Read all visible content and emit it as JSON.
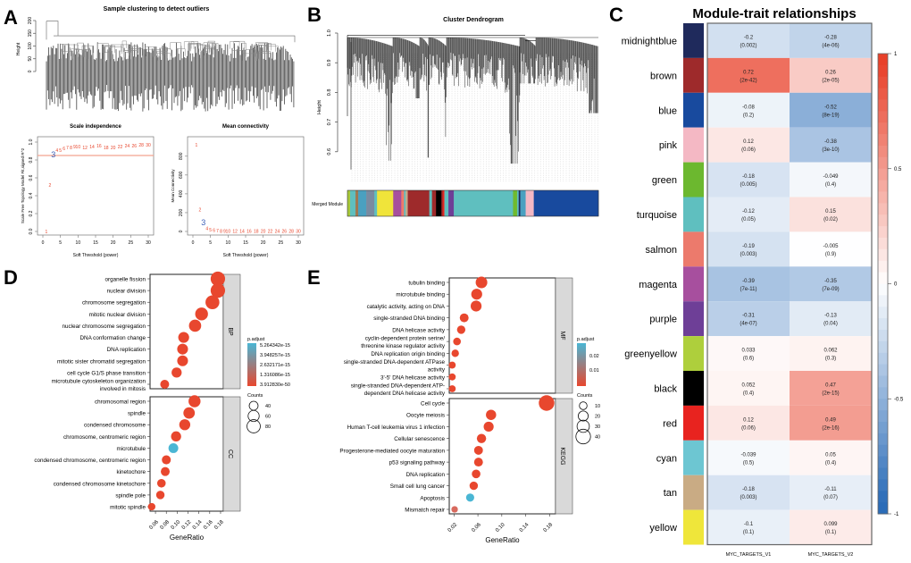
{
  "panel_labels": [
    "A",
    "B",
    "C",
    "D",
    "E"
  ],
  "chart_data": [
    {
      "id": "sample_clustering",
      "type": "dendrogram",
      "title": "Sample clustering to detect outliers",
      "ylabel": "Height",
      "yticks": [
        0,
        50,
        100,
        150,
        200
      ],
      "ylim": [
        0,
        200
      ]
    },
    {
      "id": "scale_independence",
      "type": "scatter",
      "title": "Scale independence",
      "xlabel": "Soft Threshold (power)",
      "ylabel": "Scale Free Topology Model Fit,signed R^2",
      "xlim": [
        0,
        30
      ],
      "ylim": [
        0,
        1
      ],
      "xticks": [
        0,
        5,
        10,
        15,
        20,
        25,
        30
      ],
      "yticks": [
        0.0,
        0.2,
        0.4,
        0.6,
        0.8,
        1.0
      ],
      "cutoff": 0.85,
      "selected_power": 3,
      "x": [
        1,
        2,
        3,
        4,
        5,
        6,
        7,
        8,
        9,
        10,
        12,
        14,
        16,
        18,
        20,
        22,
        24,
        26,
        28,
        30
      ],
      "y": [
        0.0,
        0.52,
        0.85,
        0.91,
        0.91,
        0.93,
        0.94,
        0.94,
        0.95,
        0.95,
        0.94,
        0.95,
        0.96,
        0.94,
        0.94,
        0.95,
        0.96,
        0.96,
        0.97,
        0.97
      ]
    },
    {
      "id": "mean_connectivity",
      "type": "scatter",
      "title": "Mean connectivity",
      "xlabel": "Soft Threshold (power)",
      "ylabel": "Mean Connectivity",
      "xlim": [
        0,
        30
      ],
      "ylim": [
        0,
        950
      ],
      "xticks": [
        0,
        5,
        10,
        15,
        20,
        25,
        30
      ],
      "yticks": [
        0,
        200,
        400,
        600,
        800
      ],
      "selected_power": 3,
      "x": [
        1,
        2,
        3,
        4,
        5,
        6,
        7,
        8,
        9,
        10,
        12,
        14,
        16,
        18,
        20,
        22,
        24,
        26,
        28,
        30
      ],
      "y": [
        920,
        235,
        85,
        35,
        20,
        12,
        8,
        6,
        5,
        5,
        4,
        4,
        4,
        4,
        4,
        4,
        4,
        4,
        4,
        4
      ]
    },
    {
      "id": "cluster_dendrogram",
      "type": "dendrogram",
      "title": "Cluster Dendrogram",
      "ylabel": "Height",
      "yticks": [
        0.6,
        0.7,
        0.8,
        0.9,
        1.0
      ],
      "ylim": [
        0.5,
        1.0
      ],
      "module_label": "Merged Module",
      "modules": [
        {
          "color": "#a8c93a",
          "size": 1
        },
        {
          "color": "#5fbfbf",
          "size": 2
        },
        {
          "color": "#a07850",
          "size": 1
        },
        {
          "color": "#4aa0c0",
          "size": 3
        },
        {
          "color": "#7a8aa0",
          "size": 3
        },
        {
          "color": "#5fbfbf",
          "size": 1
        },
        {
          "color": "#f0e43a",
          "size": 6
        },
        {
          "color": "#a74f9e",
          "size": 3
        },
        {
          "color": "#f07a6a",
          "size": 1
        },
        {
          "color": "#5fbfbf",
          "size": 0.6
        },
        {
          "color": "#c6a888",
          "size": 0.8
        },
        {
          "color": "#9e2a2b",
          "size": 8
        },
        {
          "color": "#5fbfbf",
          "size": 1
        },
        {
          "color": "#9e2a2b",
          "size": 1.5
        },
        {
          "color": "#000000",
          "size": 2
        },
        {
          "color": "#9e2a2b",
          "size": 0.5
        },
        {
          "color": "#e8251f",
          "size": 0.6
        },
        {
          "color": "#5fbfbf",
          "size": 1.5
        },
        {
          "color": "#6e3f97",
          "size": 2
        },
        {
          "color": "#5fbfbf",
          "size": 22
        },
        {
          "color": "#70bb2e",
          "size": 1.5
        },
        {
          "color": "#5fbfbf",
          "size": 0.6
        },
        {
          "color": "#1f2a5c",
          "size": 0.6
        },
        {
          "color": "#4aa0c0",
          "size": 2
        },
        {
          "color": "#f4b8c4",
          "size": 3
        },
        {
          "color": "#184a9e",
          "size": 24
        }
      ]
    },
    {
      "id": "module_trait",
      "type": "heatmap",
      "title": "Module-trait relationships",
      "columns": [
        "MYC_TARGETS_V1",
        "MYC_TARGETS_V2"
      ],
      "colorbar_ticks": [
        "1",
        "0.5",
        "0",
        "-0.5",
        "-1"
      ],
      "colorbar_range": [
        -1,
        1
      ],
      "rows": [
        {
          "module": "midnightblue",
          "color": "#1f2a5c",
          "values": [
            -0.2,
            -0.28
          ],
          "labels": [
            "-0.2",
            "-0.28"
          ],
          "p": [
            "(0.002)",
            "(4e-06)"
          ]
        },
        {
          "module": "brown",
          "color": "#9e2a2b",
          "values": [
            0.72,
            0.26
          ],
          "labels": [
            "0.72",
            "0.26"
          ],
          "p": [
            "(2e-42)",
            "(2e-05)"
          ]
        },
        {
          "module": "blue",
          "color": "#184a9e",
          "values": [
            -0.08,
            -0.52
          ],
          "labels": [
            "-0.08",
            "-0.52"
          ],
          "p": [
            "(0.2)",
            "(8e-19)"
          ]
        },
        {
          "module": "pink",
          "color": "#f4b8c4",
          "values": [
            0.12,
            -0.38
          ],
          "labels": [
            "0.12",
            "-0.38"
          ],
          "p": [
            "(0.06)",
            "(3e-10)"
          ]
        },
        {
          "module": "green",
          "color": "#6cb82f",
          "values": [
            -0.18,
            -0.049
          ],
          "labels": [
            "-0.18",
            "-0.049"
          ],
          "p": [
            "(0.005)",
            "(0.4)"
          ]
        },
        {
          "module": "turquoise",
          "color": "#5fbfbf",
          "values": [
            -0.12,
            0.15
          ],
          "labels": [
            "-0.12",
            "0.15"
          ],
          "p": [
            "(0.05)",
            "(0.02)"
          ]
        },
        {
          "module": "salmon",
          "color": "#ec7a6c",
          "values": [
            -0.19,
            -0.005
          ],
          "labels": [
            "-0.19",
            "-0.005"
          ],
          "p": [
            "(0.003)",
            "(0.9)"
          ]
        },
        {
          "module": "magenta",
          "color": "#a74f9e",
          "values": [
            -0.39,
            -0.35
          ],
          "labels": [
            "-0.39",
            "-0.35"
          ],
          "p": [
            "(7e-11)",
            "(7e-09)"
          ]
        },
        {
          "module": "purple",
          "color": "#6e3f97",
          "values": [
            -0.31,
            -0.13
          ],
          "labels": [
            "-0.31",
            "-0.13"
          ],
          "p": [
            "(4e-07)",
            "(0.04)"
          ]
        },
        {
          "module": "greenyellow",
          "color": "#aecf3c",
          "values": [
            0.033,
            0.062
          ],
          "labels": [
            "0.033",
            "0.062"
          ],
          "p": [
            "(0.6)",
            "(0.3)"
          ]
        },
        {
          "module": "black",
          "color": "#000000",
          "values": [
            0.052,
            0.47
          ],
          "labels": [
            "0.052",
            "0.47"
          ],
          "p": [
            "(0.4)",
            "(2e-15)"
          ]
        },
        {
          "module": "red",
          "color": "#e8231f",
          "values": [
            0.12,
            0.49
          ],
          "labels": [
            "0.12",
            "0.49"
          ],
          "p": [
            "(0.06)",
            "(2e-16)"
          ]
        },
        {
          "module": "cyan",
          "color": "#6dc6d2",
          "values": [
            -0.039,
            0.05
          ],
          "labels": [
            "-0.039",
            "0.05"
          ],
          "p": [
            "(0.5)",
            "(0.4)"
          ]
        },
        {
          "module": "tan",
          "color": "#c9ab84",
          "values": [
            -0.18,
            -0.11
          ],
          "labels": [
            "-0.18",
            "-0.11"
          ],
          "p": [
            "(0.003)",
            "(0.07)"
          ]
        },
        {
          "module": "yellow",
          "color": "#efe63a",
          "values": [
            -0.1,
            0.099
          ],
          "labels": [
            "-0.1",
            "0.099"
          ],
          "p": [
            "(0.1)",
            "(0.1)"
          ]
        }
      ]
    },
    {
      "id": "go_bp_cc",
      "type": "scatter",
      "xlabel": "GeneRatio",
      "xticks": [
        "0.06",
        "0.08",
        "0.10",
        "0.12",
        "0.14",
        "0.16",
        "0.18"
      ],
      "xlim": [
        0.05,
        0.185
      ],
      "legend": {
        "color_title": "p.adjust",
        "color_ticks": [
          "5.264342e-15",
          "3.948257e-15",
          "2.632171e-15",
          "1.316086e-15",
          "3.912830e-50"
        ],
        "size_title": "Counts",
        "size_ticks": [
          40,
          60,
          80
        ]
      },
      "facets": [
        {
          "name": "BP",
          "terms": [
            {
              "term": [
                "organelle fission"
              ],
              "ratio": 0.175,
              "count": 90,
              "padj": 0
            },
            {
              "term": [
                "nuclear division"
              ],
              "ratio": 0.175,
              "count": 90,
              "padj": 0
            },
            {
              "term": [
                "chromosome segregation"
              ],
              "ratio": 0.165,
              "count": 85,
              "padj": 0
            },
            {
              "term": [
                "mitotic nuclear division"
              ],
              "ratio": 0.145,
              "count": 75,
              "padj": 0
            },
            {
              "term": [
                "nuclear chromosome segregation"
              ],
              "ratio": 0.133,
              "count": 70,
              "padj": 0
            },
            {
              "term": [
                "DNA conformation change"
              ],
              "ratio": 0.112,
              "count": 58,
              "padj": 0
            },
            {
              "term": [
                "DNA replication"
              ],
              "ratio": 0.11,
              "count": 57,
              "padj": 0
            },
            {
              "term": [
                "mitotic sister chromatid segregation"
              ],
              "ratio": 0.11,
              "count": 57,
              "padj": 0
            },
            {
              "term": [
                "cell cycle G1/S phase transition"
              ],
              "ratio": 0.099,
              "count": 51,
              "padj": 0
            },
            {
              "term": [
                "microtubule cytoskeleton organization",
                "involved in mitosis"
              ],
              "ratio": 0.077,
              "count": 40,
              "padj": 0
            }
          ]
        },
        {
          "name": "CC",
          "terms": [
            {
              "term": [
                "chromosomal region"
              ],
              "ratio": 0.132,
              "count": 68,
              "padj": 0
            },
            {
              "term": [
                "spindle"
              ],
              "ratio": 0.122,
              "count": 63,
              "padj": 0
            },
            {
              "term": [
                "condensed chromosome"
              ],
              "ratio": 0.114,
              "count": 59,
              "padj": 0
            },
            {
              "term": [
                "chromosome, centromeric region"
              ],
              "ratio": 0.098,
              "count": 51,
              "padj": 0
            },
            {
              "term": [
                "microtubule"
              ],
              "ratio": 0.093,
              "count": 48,
              "padj": 1
            },
            {
              "term": [
                "condensed chromosome, centromeric region"
              ],
              "ratio": 0.08,
              "count": 41,
              "padj": 0
            },
            {
              "term": [
                "kinetochore"
              ],
              "ratio": 0.078,
              "count": 40,
              "padj": 0
            },
            {
              "term": [
                "condensed chromosome kinetochore"
              ],
              "ratio": 0.071,
              "count": 37,
              "padj": 0
            },
            {
              "term": [
                "spindle pole"
              ],
              "ratio": 0.069,
              "count": 36,
              "padj": 0
            },
            {
              "term": [
                "mitotic spindle"
              ],
              "ratio": 0.053,
              "count": 27,
              "padj": 0
            }
          ]
        }
      ]
    },
    {
      "id": "go_mf_kegg",
      "type": "scatter",
      "xlabel": "GeneRatio",
      "xticks": [
        "0.02",
        "0.06",
        "0.10",
        "0.14",
        "0.18"
      ],
      "xlim": [
        0.012,
        0.19
      ],
      "legend": {
        "color_title": "p.adjust",
        "color_ticks": [
          "0.02",
          "0.01"
        ],
        "size_title": "Counts",
        "size_ticks": [
          10,
          20,
          30,
          40
        ]
      },
      "facets": [
        {
          "name": "MF",
          "terms": [
            {
              "term": [
                "tubulin binding"
              ],
              "ratio": 0.066,
              "count": 27,
              "padj": 0
            },
            {
              "term": [
                "microtubule binding"
              ],
              "ratio": 0.058,
              "count": 24,
              "padj": 0
            },
            {
              "term": [
                "catalytic activity, acting on DNA"
              ],
              "ratio": 0.057,
              "count": 24,
              "padj": 0
            },
            {
              "term": [
                "single-stranded DNA binding"
              ],
              "ratio": 0.037,
              "count": 15,
              "padj": 0
            },
            {
              "term": [
                "DNA helicase activity"
              ],
              "ratio": 0.032,
              "count": 13,
              "padj": 0
            },
            {
              "term": [
                "cyclin-dependent protein serine/",
                "threonine kinase regulator activity"
              ],
              "ratio": 0.025,
              "count": 10,
              "padj": 0
            },
            {
              "term": [
                "DNA replication origin binding"
              ],
              "ratio": 0.022,
              "count": 9,
              "padj": 0
            },
            {
              "term": [
                "single-stranded DNA-dependent ATPase",
                "activity"
              ],
              "ratio": 0.017,
              "count": 7,
              "padj": 0
            },
            {
              "term": [
                "3'-5' DNA helicase activity"
              ],
              "ratio": 0.017,
              "count": 7,
              "padj": 0
            },
            {
              "term": [
                "single-stranded DNA-dependent ATP-",
                "dependent DNA helicase activity"
              ],
              "ratio": 0.017,
              "count": 7,
              "padj": 0
            }
          ]
        },
        {
          "name": "KEGG",
          "terms": [
            {
              "term": [
                "Cell cycle"
              ],
              "ratio": 0.175,
              "count": 44,
              "padj": 0
            },
            {
              "term": [
                "Oocyte meiosis"
              ],
              "ratio": 0.082,
              "count": 21,
              "padj": 0
            },
            {
              "term": [
                "Human T-cell leukemia virus 1 infection"
              ],
              "ratio": 0.078,
              "count": 20,
              "padj": 0
            },
            {
              "term": [
                "Cellular senescence"
              ],
              "ratio": 0.066,
              "count": 17,
              "padj": 0
            },
            {
              "term": [
                "Progesterone-mediated oocyte maturation"
              ],
              "ratio": 0.061,
              "count": 15,
              "padj": 0
            },
            {
              "term": [
                "p53 signaling pathway"
              ],
              "ratio": 0.061,
              "count": 15,
              "padj": 0
            },
            {
              "term": [
                "DNA replication"
              ],
              "ratio": 0.057,
              "count": 14,
              "padj": 0
            },
            {
              "term": [
                "Small cell lung cancer"
              ],
              "ratio": 0.053,
              "count": 13,
              "padj": 0
            },
            {
              "term": [
                "Apoptosis"
              ],
              "ratio": 0.047,
              "count": 12,
              "padj": 1
            },
            {
              "term": [
                "Mismatch repair"
              ],
              "ratio": 0.021,
              "count": 5,
              "padj": 0.35
            }
          ]
        }
      ]
    }
  ],
  "colors": {
    "red": "#e8472e",
    "blue": "#4ab6d4",
    "cutoff_line": "#f4a58f",
    "selected": "#3b5fb8",
    "points": "#e8472e",
    "strip": "#d9d9d9",
    "heat_pos": "#e8412a",
    "heat_neg": "#2b6cb8"
  }
}
